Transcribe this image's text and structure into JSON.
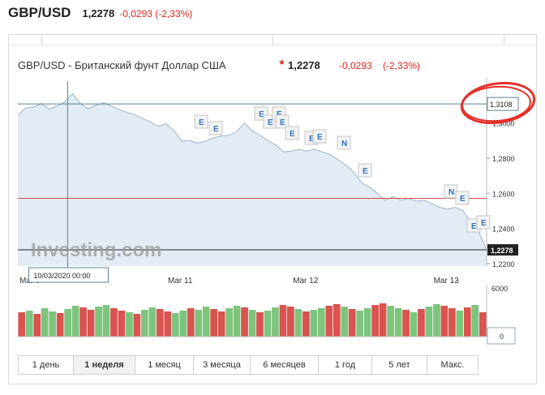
{
  "header": {
    "symbol": "GBP/USD",
    "price": "1,2278",
    "change": "-0,0293 (-2,33%)"
  },
  "chart_header": {
    "title": "GBP/USD - Британский фунт Доллар США",
    "price": "1,2278",
    "change": "-0,0293",
    "change_pct": "(-2,33%)"
  },
  "watermark": "Investing.com",
  "crosshair": {
    "date_label": "10/03/2020 00:00",
    "price_label": "1,3108"
  },
  "periods": [
    {
      "label": "1 день",
      "active": false
    },
    {
      "label": "1 неделя",
      "active": true
    },
    {
      "label": "1 месяц",
      "active": false
    },
    {
      "label": "3 месяца",
      "active": false
    },
    {
      "label": "6 месяцев",
      "active": false
    },
    {
      "label": "1 год",
      "active": false
    },
    {
      "label": "5 лет",
      "active": false
    },
    {
      "label": "Макс.",
      "active": false
    }
  ],
  "colors": {
    "line": "#9cb3c9",
    "area": "#e3ecf4",
    "down": "#d9534f",
    "up": "#7dc47d",
    "annotation": "#e4302a"
  },
  "chart_data": {
    "type": "area",
    "title": "GBP/USD - Британский фунт Доллар США",
    "x_ticks": [
      "Mar 9",
      "Mar 11",
      "Mar 12",
      "Mar 13"
    ],
    "y_ticks": [
      "1,3000",
      "1,2800",
      "1,2600",
      "1,2400",
      "1,2200"
    ],
    "ylim": [
      1.2186,
      1.3238
    ],
    "price_line": 1.2278,
    "prev_close_line": 1.2571,
    "high_line": 1.3108,
    "series": [
      {
        "x": [
          0,
          1,
          2,
          3,
          4,
          5,
          6,
          7,
          8,
          9,
          10,
          11,
          12,
          13,
          14,
          15,
          16,
          17,
          18,
          19,
          20,
          21,
          22,
          23,
          24,
          25,
          26,
          27,
          28,
          29,
          30,
          31,
          32,
          33,
          34,
          35,
          36,
          37,
          38,
          39,
          40,
          41,
          42,
          43,
          44,
          45,
          46,
          47,
          48,
          49,
          50,
          51,
          52,
          53,
          54,
          55,
          56,
          57,
          58,
          59,
          60
        ],
        "values": [
          1.3045,
          1.3085,
          1.309,
          1.311,
          1.308,
          1.3095,
          1.312,
          1.3165,
          1.311,
          1.308,
          1.31,
          1.3115,
          1.3095,
          1.3075,
          1.306,
          1.3045,
          1.3025,
          1.3005,
          1.298,
          1.2995,
          1.2955,
          1.2895,
          1.29,
          1.2885,
          1.2895,
          1.2915,
          1.2925,
          1.293,
          1.295,
          1.3,
          1.2955,
          1.293,
          1.29,
          1.2875,
          1.2835,
          1.284,
          1.285,
          1.284,
          1.285,
          1.2835,
          1.282,
          1.279,
          1.276,
          1.272,
          1.266,
          1.2635,
          1.26,
          1.256,
          1.258,
          1.256,
          1.257,
          1.2555,
          1.256,
          1.254,
          1.252,
          1.251,
          1.252,
          1.25,
          1.243,
          1.238,
          1.2278
        ]
      }
    ],
    "events": [
      {
        "label": "E",
        "x": 12
      },
      {
        "label": "E",
        "x": 13
      },
      {
        "label": "E",
        "x": 30
      },
      {
        "label": "E",
        "x": 31
      },
      {
        "label": "E",
        "x": 32
      },
      {
        "label": "E",
        "x": 33
      },
      {
        "label": "E",
        "x": 35
      },
      {
        "label": "E",
        "x": 36
      },
      {
        "label": "E",
        "x": 38
      },
      {
        "label": "N",
        "x": 40
      },
      {
        "label": "E",
        "x": 43
      },
      {
        "label": "N",
        "x": 53
      },
      {
        "label": "E",
        "x": 54
      },
      {
        "label": "E",
        "x": 57
      },
      {
        "label": "E",
        "x": 58
      }
    ],
    "volume": {
      "y_ticks": [
        "6000",
        "0"
      ],
      "ylim": [
        0,
        6000
      ],
      "values": [
        3000,
        3200,
        2800,
        3500,
        3100,
        2900,
        3400,
        3800,
        3600,
        3300,
        3700,
        3900,
        3500,
        3200,
        3000,
        2800,
        3300,
        3600,
        3400,
        3100,
        2900,
        3200,
        3500,
        3300,
        3700,
        3400,
        3100,
        3500,
        3800,
        3600,
        3300,
        3000,
        3200,
        3600,
        3900,
        3700,
        3400,
        3100,
        3300,
        3500,
        3800,
        4000,
        3700,
        3400,
        3200,
        3500,
        3900,
        4100,
        3800,
        3500,
        3300,
        3000,
        3400,
        3700,
        4000,
        3800,
        3500,
        3200,
        3600,
        3900,
        3000
      ],
      "up": [
        0,
        1,
        0,
        1,
        1,
        0,
        1,
        1,
        0,
        0,
        1,
        1,
        0,
        0,
        1,
        0,
        1,
        1,
        0,
        0,
        1,
        1,
        0,
        1,
        1,
        0,
        0,
        1,
        1,
        0,
        1,
        0,
        1,
        1,
        0,
        0,
        1,
        0,
        1,
        1,
        0,
        0,
        1,
        0,
        1,
        1,
        0,
        0,
        1,
        1,
        0,
        1,
        0,
        1,
        1,
        0,
        0,
        1,
        0,
        1,
        0
      ]
    }
  }
}
